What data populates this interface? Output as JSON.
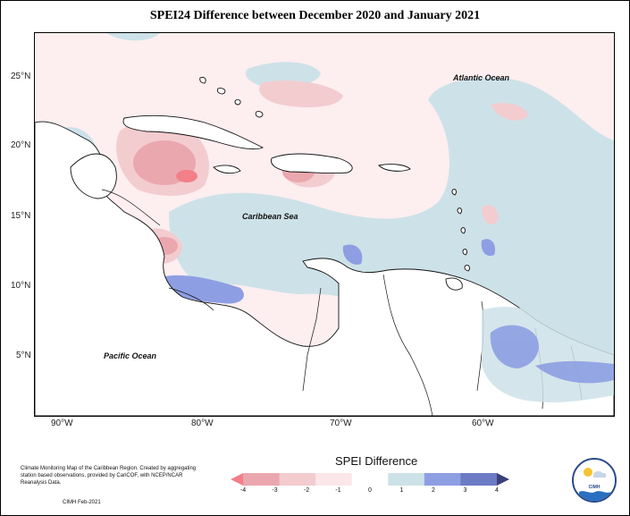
{
  "title": "SPEI24 Difference between December 2020 and January 2021",
  "map": {
    "lat_labels": [
      "25°N",
      "20°N",
      "15°N",
      "10°N",
      "5°N"
    ],
    "lon_labels": [
      "90°W",
      "80°W",
      "70°W",
      "60°W"
    ],
    "oceans": {
      "atlantic": "Atlantic Ocean",
      "caribbean": "Caribbean Sea",
      "pacific": "Pacific Ocean"
    }
  },
  "legend": {
    "title": "SPEI Difference",
    "ticks": [
      "-4",
      "-3",
      "-2",
      "-1",
      "0",
      "1",
      "2",
      "3",
      "4"
    ],
    "colors": [
      "#f37f88",
      "#eba7ae",
      "#f3ccd0",
      "#fbe7ea",
      "#ffffff",
      "#cde2e8",
      "#8e9ee3",
      "#6d7bc4",
      "#3b3f7a"
    ]
  },
  "credit": {
    "text": "Climate Monitoring Map of the Caribbean Region. Created by aggregating station based observations, provided by CariCOF, with NCEP/NCAR Reanalysis Data.",
    "date": "CIMH Feb-2021"
  },
  "logo": {
    "label": "CIMH"
  }
}
